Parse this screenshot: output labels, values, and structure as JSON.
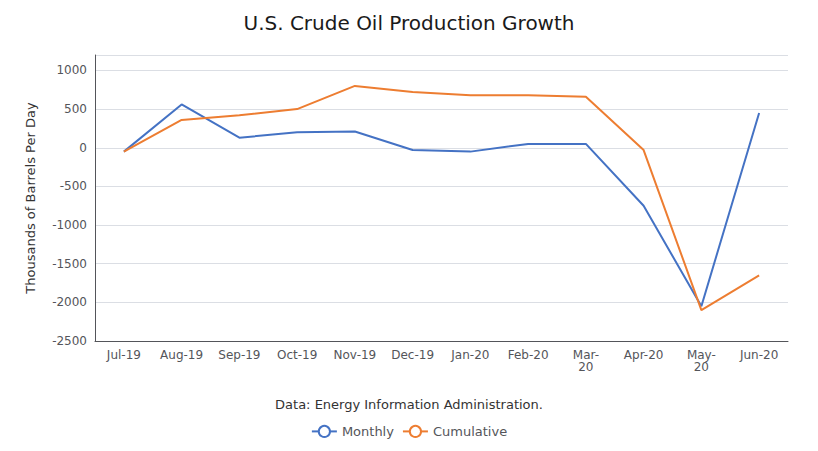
{
  "chart_data": {
    "type": "line",
    "title": "U.S. Crude Oil Production Growth",
    "ylabel": "Thousands of Barrels Per Day",
    "annotations": [
      "Data: Energy Information Administration."
    ],
    "categories": [
      "Jul-19",
      "Aug-19",
      "Sep-19",
      "Oct-19",
      "Nov-19",
      "Dec-19",
      "Jan-20",
      "Feb-20",
      "Mar-\n20",
      "Apr-20",
      "May-\n20",
      "Jun-20"
    ],
    "series": [
      {
        "name": "Monthly",
        "color": "#4472c4",
        "values": [
          -50,
          560,
          130,
          200,
          210,
          -30,
          -50,
          50,
          50,
          -750,
          -2050,
          450
        ]
      },
      {
        "name": "Cumulative",
        "color": "#ed7d31",
        "values": [
          -50,
          360,
          420,
          500,
          800,
          720,
          680,
          680,
          660,
          -30,
          -2100,
          -1650
        ]
      }
    ],
    "ylim": [
      -2500,
      1200
    ],
    "yticks": [
      -2500,
      -2000,
      -1500,
      -1000,
      -500,
      0,
      500,
      1000
    ],
    "grid": true,
    "legend": "bottom"
  }
}
